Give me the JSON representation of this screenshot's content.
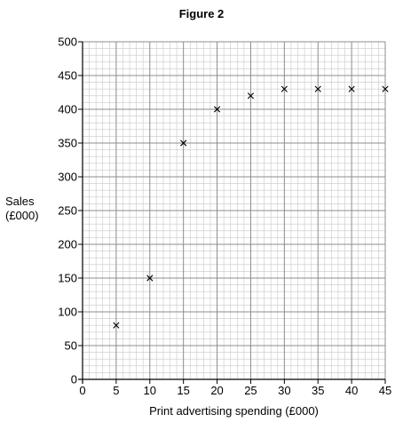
{
  "chart_data": {
    "type": "scatter",
    "title": "Figure 2",
    "xlabel": "Print advertising spending (£000)",
    "ylabel_lines": [
      "Sales",
      "(£000)"
    ],
    "x": [
      5,
      10,
      15,
      20,
      25,
      30,
      35,
      40,
      45
    ],
    "y": [
      80,
      150,
      350,
      400,
      420,
      430,
      430,
      430,
      430
    ],
    "xlim": [
      0,
      45
    ],
    "ylim": [
      0,
      500
    ],
    "x_ticks": [
      0,
      5,
      10,
      15,
      20,
      25,
      30,
      35,
      40,
      45
    ],
    "y_ticks": [
      0,
      50,
      100,
      150,
      200,
      250,
      300,
      350,
      400,
      450,
      500
    ],
    "marker": "x",
    "grid": true,
    "colors": {
      "minor_grid": "#c8c8c8",
      "major_grid": "#8c8c8c",
      "axis": "#000000",
      "marker": "#000000"
    }
  }
}
